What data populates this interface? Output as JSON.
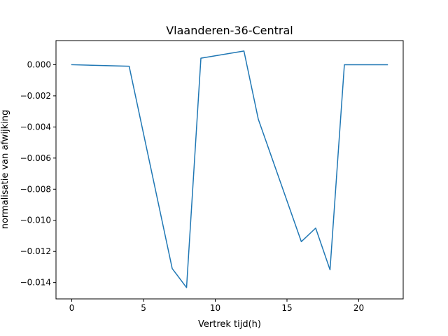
{
  "chart_data": {
    "type": "line",
    "title": "Vlaanderen-36-Central",
    "xlabel": "Vertrek tijd(h)",
    "ylabel": "normalisatie van afwijking",
    "xlim": [
      -1.1,
      23.1
    ],
    "ylim": [
      -0.01505,
      0.00155
    ],
    "xticks": [
      0,
      5,
      10,
      15,
      20
    ],
    "yticks": [
      0.0,
      -0.002,
      -0.004,
      -0.006,
      -0.008,
      -0.01,
      -0.012,
      -0.014
    ],
    "ytick_labels": [
      "0.000",
      "−0.002",
      "−0.004",
      "−0.006",
      "−0.008",
      "−0.010",
      "−0.012",
      "−0.014"
    ],
    "grid": false,
    "series": [
      {
        "color": "#1f77b4",
        "x": [
          0,
          4,
          7,
          8,
          9,
          12,
          13,
          16,
          17,
          18,
          19,
          22
        ],
        "y": [
          0.0,
          -0.0001,
          -0.0131,
          -0.01432,
          0.00042,
          0.00088,
          -0.0035,
          -0.01137,
          -0.0105,
          -0.01318,
          0.0,
          0.0
        ]
      }
    ]
  }
}
